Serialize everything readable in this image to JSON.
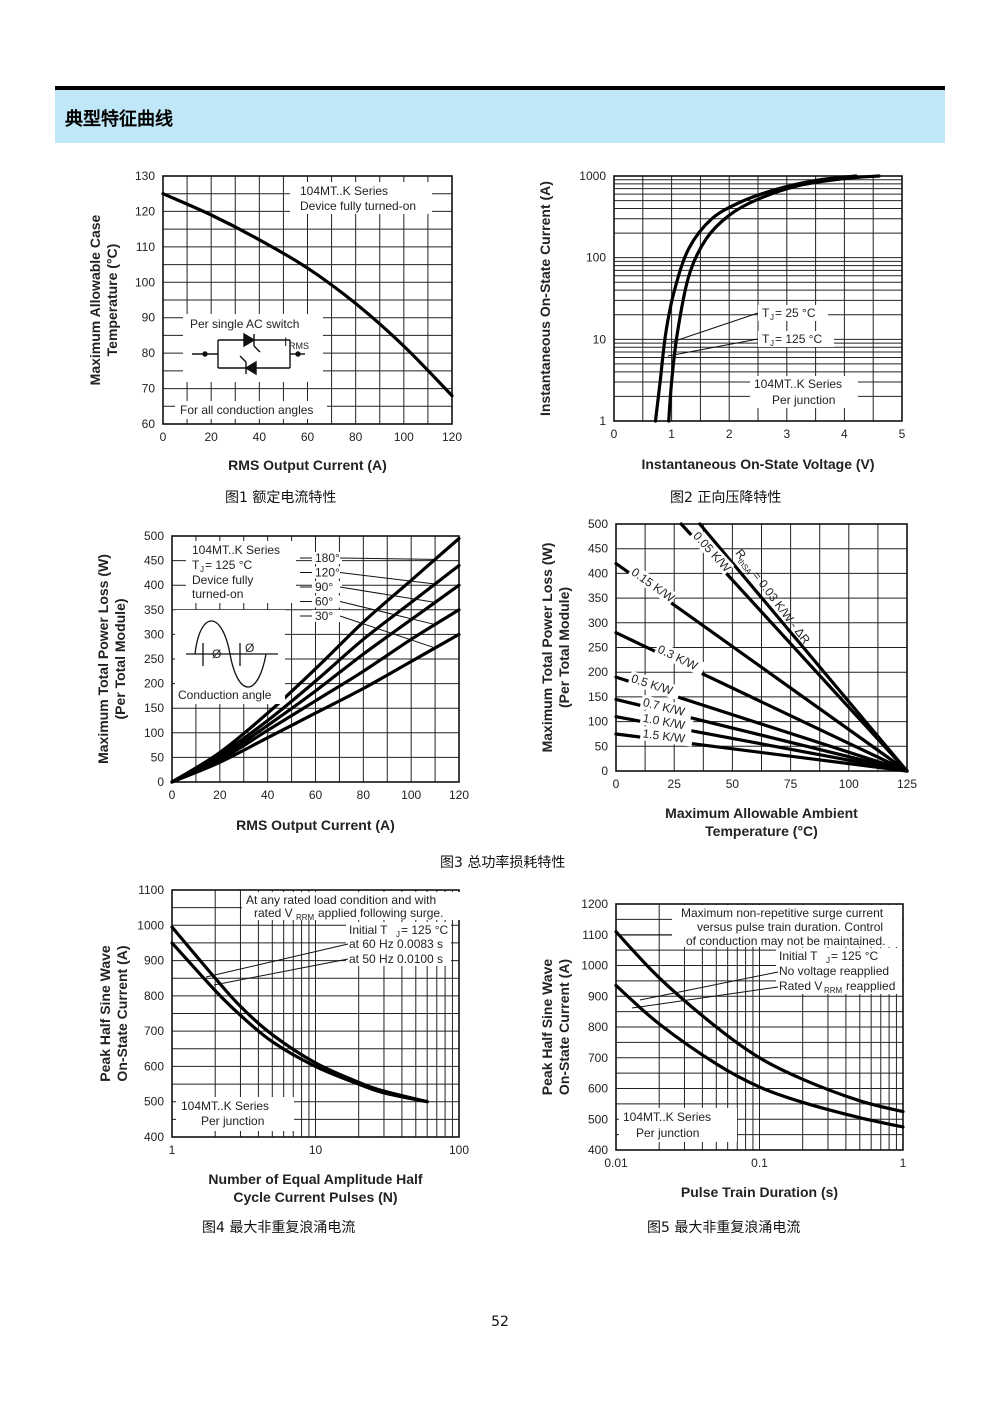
{
  "section_title": "典型特征曲线",
  "page_number": "52",
  "captions": {
    "fig1": "图1  额定电流特性",
    "fig2": "图2  正向压降特性",
    "fig3": "图3  总功率损耗特性",
    "fig4": "图4  最大非重复浪涌电流",
    "fig5": "图5  最大非重复浪涌电流"
  },
  "chart_data": [
    {
      "id": "fig1",
      "type": "line",
      "xlabel": "RMS Output Current (A)",
      "ylabel": [
        "Maximum Allowable Case",
        "Temperature (°C)"
      ],
      "xlim": [
        0,
        120
      ],
      "ylim": [
        60,
        130
      ],
      "xticks": [
        0,
        20,
        40,
        60,
        80,
        100,
        120
      ],
      "yticks": [
        60,
        70,
        80,
        90,
        100,
        110,
        120,
        130
      ],
      "grid": true,
      "annotations": [
        "104MT..K Series",
        "Device fully turned-on",
        "Per single AC switch",
        "I",
        "RMS",
        "For all conduction angles"
      ],
      "series": [
        {
          "x": [
            0,
            20,
            40,
            60,
            80,
            100,
            120
          ],
          "y": [
            125,
            119,
            112,
            104,
            94,
            82,
            68
          ]
        }
      ]
    },
    {
      "id": "fig2",
      "type": "line",
      "xlabel": "Instantaneous On-State Voltage (V)",
      "ylabel": [
        "Instantaneous On-State Current (A)"
      ],
      "xlim": [
        0,
        5
      ],
      "ylim": [
        1,
        1000
      ],
      "yscale": "log",
      "xticks": [
        0,
        1,
        2,
        3,
        4,
        5
      ],
      "yticks": [
        1,
        10,
        100,
        1000
      ],
      "grid": true,
      "annotations": [
        "T",
        "J",
        " = 25 °C",
        "T",
        "J",
        " = 125 °C",
        "104MT..K Series",
        "Per junction"
      ],
      "series": [
        {
          "name": "TJ = 25 °C",
          "x": [
            0.95,
            1.0,
            1.1,
            1.3,
            1.6,
            2.0,
            2.5,
            3.2,
            4.0,
            4.6
          ],
          "y": [
            1,
            3,
            12,
            60,
            170,
            330,
            520,
            760,
            930,
            1000
          ]
        },
        {
          "name": "TJ = 125 °C",
          "x": [
            0.72,
            0.8,
            0.9,
            1.05,
            1.3,
            1.7,
            2.2,
            2.8,
            3.5,
            4.2
          ],
          "y": [
            1,
            3,
            12,
            40,
            130,
            300,
            480,
            680,
            880,
            1000
          ]
        }
      ]
    },
    {
      "id": "fig3a",
      "type": "line",
      "xlabel": "RMS Output Current (A)",
      "ylabel": [
        "Maximum Total Power Loss (W)",
        "(Per Total Module)"
      ],
      "xlim": [
        0,
        120
      ],
      "ylim": [
        0,
        500
      ],
      "xticks": [
        0,
        20,
        40,
        60,
        80,
        100,
        120
      ],
      "yticks": [
        0,
        50,
        100,
        150,
        200,
        250,
        300,
        350,
        400,
        450,
        500
      ],
      "grid": true,
      "annotations": [
        "104MT..K Series",
        "T",
        "J",
        " = 125 °C",
        "Device fully",
        "turned-on",
        "Ø",
        "Ø",
        "Conduction angle"
      ],
      "series": [
        {
          "name": "180°",
          "x": [
            0,
            20,
            40,
            60,
            80,
            100,
            120
          ],
          "y": [
            0,
            60,
            140,
            230,
            325,
            410,
            495
          ]
        },
        {
          "name": "120°",
          "x": [
            0,
            20,
            40,
            60,
            80,
            100,
            120
          ],
          "y": [
            0,
            55,
            125,
            205,
            290,
            365,
            440
          ]
        },
        {
          "name": "90°",
          "x": [
            0,
            20,
            40,
            60,
            80,
            100,
            120
          ],
          "y": [
            0,
            50,
            115,
            185,
            260,
            330,
            400
          ]
        },
        {
          "name": "60°",
          "x": [
            0,
            20,
            40,
            60,
            80,
            100,
            120
          ],
          "y": [
            0,
            45,
            105,
            165,
            225,
            290,
            350
          ]
        },
        {
          "name": "30°",
          "x": [
            0,
            20,
            40,
            60,
            80,
            100,
            120
          ],
          "y": [
            0,
            40,
            90,
            140,
            190,
            245,
            300
          ]
        }
      ]
    },
    {
      "id": "fig3b",
      "type": "line",
      "xlabel": [
        "Maximum Allowable Ambient",
        "Temperature (°C)"
      ],
      "ylabel": [
        "Maximum Total Power Loss (W)",
        "(Per Total Module)"
      ],
      "xlim": [
        0,
        125
      ],
      "ylim": [
        0,
        500
      ],
      "xticks": [
        0,
        25,
        50,
        75,
        100,
        125
      ],
      "yticks": [
        0,
        50,
        100,
        150,
        200,
        250,
        300,
        350,
        400,
        450,
        500
      ],
      "grid": true,
      "annotations": [
        "R",
        "thSA",
        " = 0.03 K/W - ΔR"
      ],
      "series": [
        {
          "name": "0.03 K/W",
          "x": [
            36,
            125
          ],
          "y": [
            500,
            0
          ]
        },
        {
          "name": "0.05 K/W",
          "x": [
            28,
            125
          ],
          "y": [
            500,
            0
          ]
        },
        {
          "name": "0.15 K/W",
          "x": [
            0,
            125
          ],
          "y": [
            420,
            0
          ]
        },
        {
          "name": "0.3 K/W",
          "x": [
            0,
            125
          ],
          "y": [
            280,
            0
          ]
        },
        {
          "name": "0.5 K/W",
          "x": [
            0,
            125
          ],
          "y": [
            190,
            0
          ]
        },
        {
          "name": "0.7 K/W",
          "x": [
            0,
            125
          ],
          "y": [
            145,
            0
          ]
        },
        {
          "name": "1.0 K/W",
          "x": [
            0,
            125
          ],
          "y": [
            110,
            0
          ]
        },
        {
          "name": "1.5 K/W",
          "x": [
            0,
            125
          ],
          "y": [
            75,
            0
          ]
        }
      ]
    },
    {
      "id": "fig4",
      "type": "line",
      "xlabel": [
        "Number of Equal Amplitude Half",
        "Cycle Current Pulses (N)"
      ],
      "ylabel": [
        "Peak Half Sine Wave",
        "On-State Current (A)"
      ],
      "xlim": [
        1,
        100
      ],
      "xscale": "log",
      "ylim": [
        400,
        1100
      ],
      "xticks": [
        1,
        10,
        100
      ],
      "yticks": [
        400,
        500,
        600,
        700,
        800,
        900,
        1000,
        1100
      ],
      "grid": true,
      "annotations": [
        "At any rated load condition and with",
        "rated V",
        "RRM",
        " applied following surge.",
        "Initial T",
        "J",
        " = 125 °C",
        "at 60 Hz 0.0083 s",
        "at 50 Hz 0.0100 s",
        "104MT..K Series",
        "Per junction"
      ],
      "series": [
        {
          "name": "at 60 Hz 0.0083 s",
          "x": [
            1,
            2,
            3,
            5,
            10,
            20,
            30,
            60
          ],
          "y": [
            995,
            850,
            770,
            690,
            610,
            555,
            530,
            500
          ]
        },
        {
          "name": "at 50 Hz 0.0100 s",
          "x": [
            1,
            2,
            3,
            5,
            10,
            20,
            30,
            60
          ],
          "y": [
            950,
            815,
            745,
            670,
            600,
            550,
            525,
            500
          ]
        }
      ]
    },
    {
      "id": "fig5",
      "type": "line",
      "xlabel": "Pulse Train Duration (s)",
      "ylabel": [
        "Peak Half Sine Wave",
        "On-State Current (A)"
      ],
      "xlim": [
        0.01,
        1
      ],
      "xscale": "log",
      "ylim": [
        400,
        1200
      ],
      "xticks": [
        0.01,
        0.1,
        1
      ],
      "yticks": [
        400,
        500,
        600,
        700,
        800,
        900,
        1000,
        1100,
        1200
      ],
      "grid": true,
      "annotations": [
        "Maximum non-repetitive surge current",
        "versus pulse train duration. Control",
        "of conduction may not be maintained.",
        "Initial T",
        "J",
        " = 125 °C",
        "No voltage reapplied",
        "Rated V",
        "RRM",
        " reapplied",
        "104MT..K Series",
        "Per junction"
      ],
      "series": [
        {
          "name": "No voltage reapplied",
          "x": [
            0.01,
            0.02,
            0.05,
            0.1,
            0.2,
            0.5,
            1
          ],
          "y": [
            1110,
            960,
            800,
            700,
            630,
            560,
            525
          ]
        },
        {
          "name": "Rated VRRM reapplied",
          "x": [
            0.01,
            0.02,
            0.05,
            0.1,
            0.2,
            0.5,
            1
          ],
          "y": [
            935,
            810,
            680,
            605,
            555,
            505,
            475
          ]
        }
      ]
    }
  ]
}
